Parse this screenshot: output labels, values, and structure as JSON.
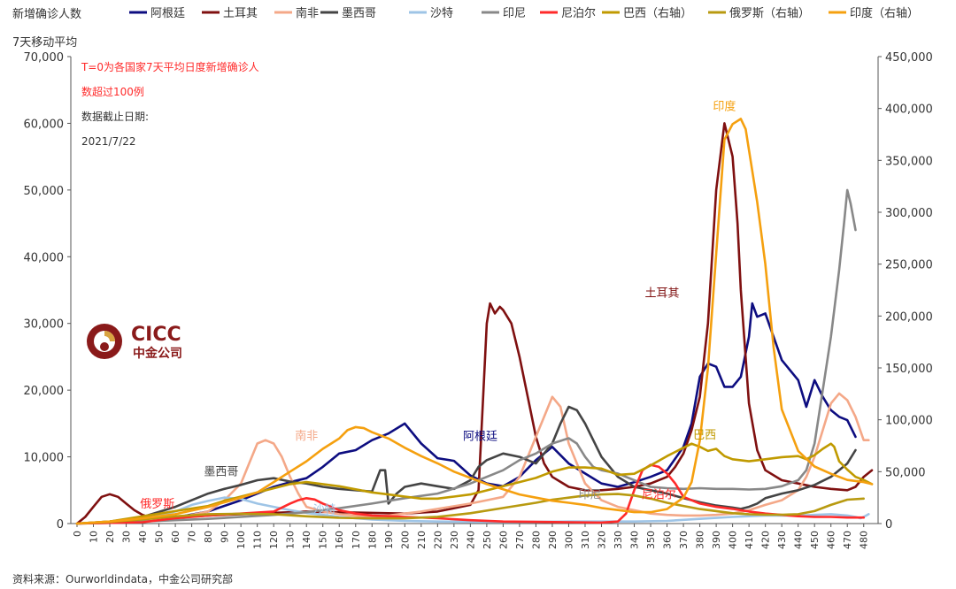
{
  "chart_data": {
    "type": "line",
    "ylabel_left": [
      "新增确诊人数",
      "7天移动平均"
    ],
    "y_left": {
      "min": 0,
      "max": 70000,
      "ticks": [
        "0",
        "10,000",
        "20,000",
        "30,000",
        "40,000",
        "50,000",
        "60,000",
        "70,000"
      ]
    },
    "y_right": {
      "min": 0,
      "max": 450000,
      "ticks": [
        "0",
        "50,000",
        "100,000",
        "150,000",
        "200,000",
        "250,000",
        "300,000",
        "350,000",
        "400,000",
        "450,000"
      ]
    },
    "x": {
      "min": 0,
      "max": 485,
      "ticks": [
        "0",
        "10",
        "20",
        "30",
        "40",
        "50",
        "60",
        "70",
        "80",
        "90",
        "100",
        "110",
        "120",
        "130",
        "140",
        "150",
        "160",
        "170",
        "180",
        "190",
        "200",
        "210",
        "220",
        "230",
        "240",
        "250",
        "260",
        "270",
        "280",
        "290",
        "300",
        "310",
        "320",
        "330",
        "340",
        "350",
        "360",
        "370",
        "380",
        "390",
        "400",
        "410",
        "420",
        "430",
        "440",
        "450",
        "460",
        "470",
        "480"
      ]
    },
    "grid": false,
    "legend_position": "top",
    "annotations": [
      {
        "text": "T=0为各国家7天平均日度新增确诊人",
        "color": "#ff2a2a"
      },
      {
        "text": "数超过100例",
        "color": "#ff2a2a"
      },
      {
        "text": "数据截止日期:",
        "color": "#333333"
      },
      {
        "text": "2021/7/22",
        "color": "#333333"
      }
    ],
    "series_labels": [
      {
        "text": "印度",
        "color": "#f5a00f",
        "x": 395,
        "y": 62000,
        "axis": "left"
      },
      {
        "text": "土耳其",
        "color": "#7f1010",
        "x": 357,
        "y": 34000,
        "axis": "left"
      },
      {
        "text": "巴西",
        "color": "#c09a00",
        "x": 383,
        "y": 12700,
        "axis": "left"
      },
      {
        "text": "阿根廷",
        "color": "#0d0d80",
        "x": 246,
        "y": 12500,
        "axis": "left"
      },
      {
        "text": "南非",
        "color": "#f4a888",
        "x": 140,
        "y": 12600,
        "axis": "left"
      },
      {
        "text": "墨西哥",
        "color": "#444444",
        "x": 88,
        "y": 7200,
        "axis": "left"
      },
      {
        "text": "俄罗斯",
        "color": "#ff2a2a",
        "x": 49,
        "y": 2400,
        "axis": "left"
      },
      {
        "text": "印尼",
        "color": "#888888",
        "x": 313,
        "y": 3800,
        "axis": "left"
      },
      {
        "text": "尼泊尔",
        "color": "#ff2a2a",
        "x": 355,
        "y": 3800,
        "axis": "left"
      },
      {
        "text": "沙特",
        "color": "#9ec4e6",
        "x": 151,
        "y": 1500,
        "axis": "left"
      }
    ],
    "series": [
      {
        "name": "阿根廷",
        "color": "#0d0d80",
        "axis": "left",
        "x": [
          0,
          20,
          40,
          60,
          80,
          100,
          120,
          130,
          140,
          150,
          160,
          170,
          180,
          190,
          200,
          210,
          220,
          230,
          240,
          250,
          260,
          270,
          280,
          290,
          300,
          310,
          320,
          330,
          340,
          350,
          360,
          370,
          375,
          380,
          385,
          390,
          395,
          400,
          405,
          410,
          412,
          415,
          420,
          425,
          430,
          440,
          445,
          450,
          455,
          460,
          465,
          470,
          475
        ],
        "y": [
          0,
          200,
          500,
          900,
          1800,
          3500,
          5500,
          6200,
          6800,
          8500,
          10500,
          11000,
          12500,
          13500,
          15000,
          12000,
          9800,
          9400,
          7200,
          6000,
          5600,
          7000,
          9500,
          11500,
          9000,
          7500,
          6000,
          5500,
          6200,
          7000,
          8000,
          11500,
          15000,
          22000,
          24000,
          23500,
          20500,
          20500,
          22000,
          28000,
          33000,
          31000,
          31500,
          28000,
          24500,
          21500,
          17500,
          21500,
          19000,
          17000,
          16000,
          15500,
          13000
        ]
      },
      {
        "name": "土耳其",
        "color": "#7f1010",
        "axis": "left",
        "x": [
          0,
          5,
          10,
          15,
          20,
          25,
          30,
          35,
          40,
          45,
          50,
          60,
          80,
          100,
          120,
          140,
          160,
          180,
          200,
          220,
          240,
          245,
          248,
          250,
          252,
          255,
          258,
          260,
          265,
          270,
          275,
          280,
          285,
          290,
          300,
          310,
          320,
          330,
          340,
          350,
          360,
          365,
          370,
          375,
          380,
          385,
          390,
          395,
          400,
          403,
          405,
          410,
          415,
          420,
          430,
          440,
          450,
          460,
          470,
          475,
          480,
          485
        ],
        "y": [
          0,
          1000,
          2500,
          4000,
          4400,
          4000,
          3000,
          2000,
          1300,
          900,
          800,
          900,
          1200,
          1400,
          1600,
          1800,
          1700,
          1600,
          1500,
          1800,
          2800,
          5000,
          20000,
          30000,
          33000,
          31500,
          32500,
          32000,
          30000,
          25000,
          19000,
          13000,
          9000,
          7000,
          5500,
          5000,
          5000,
          5200,
          5500,
          6000,
          7000,
          8500,
          10500,
          14000,
          19000,
          30000,
          50000,
          60000,
          55000,
          45000,
          35000,
          18000,
          11000,
          8000,
          6500,
          6000,
          5500,
          5200,
          5000,
          5500,
          7000,
          8000
        ]
      },
      {
        "name": "南非",
        "color": "#f4a888",
        "axis": "left",
        "x": [
          0,
          20,
          40,
          60,
          80,
          90,
          100,
          105,
          110,
          115,
          120,
          125,
          130,
          135,
          140,
          150,
          160,
          170,
          180,
          190,
          200,
          210,
          220,
          230,
          240,
          250,
          260,
          265,
          270,
          275,
          280,
          285,
          290,
          295,
          300,
          310,
          320,
          330,
          340,
          350,
          360,
          370,
          380,
          390,
          400,
          410,
          420,
          430,
          440,
          445,
          450,
          455,
          460,
          465,
          470,
          475,
          480,
          483
        ],
        "y": [
          0,
          100,
          300,
          800,
          1800,
          3500,
          6000,
          9000,
          12000,
          12500,
          12000,
          10000,
          7000,
          4500,
          2500,
          1800,
          1400,
          1200,
          1000,
          1200,
          1500,
          1800,
          2200,
          2600,
          3000,
          3500,
          4000,
          5500,
          7000,
          10000,
          13000,
          16000,
          19000,
          17500,
          12000,
          6000,
          3500,
          2500,
          2000,
          1500,
          1300,
          1200,
          1200,
          1300,
          1500,
          2000,
          2800,
          3500,
          5000,
          7000,
          10000,
          14000,
          18000,
          19500,
          18500,
          16000,
          12500,
          12500
        ]
      },
      {
        "name": "墨西哥",
        "color": "#444444",
        "axis": "left",
        "x": [
          0,
          20,
          40,
          60,
          80,
          90,
          100,
          110,
          120,
          130,
          140,
          150,
          160,
          170,
          180,
          185,
          188,
          190,
          195,
          200,
          210,
          220,
          230,
          240,
          245,
          250,
          260,
          270,
          280,
          290,
          295,
          300,
          305,
          310,
          320,
          330,
          340,
          350,
          360,
          370,
          380,
          390,
          400,
          405,
          410,
          415,
          420,
          430,
          440,
          450,
          460,
          470,
          475
        ],
        "y": [
          0,
          300,
          1000,
          2500,
          4500,
          5200,
          5800,
          6500,
          6800,
          6300,
          6000,
          5500,
          5200,
          5000,
          4800,
          8000,
          8000,
          3000,
          4500,
          5500,
          6000,
          5600,
          5200,
          6500,
          8500,
          9500,
          10500,
          10000,
          9000,
          12000,
          15000,
          17500,
          17000,
          15000,
          10000,
          7000,
          5500,
          5000,
          4500,
          3800,
          3200,
          2700,
          2400,
          2200,
          2500,
          3000,
          3800,
          4500,
          5000,
          5800,
          7000,
          9000,
          11000
        ]
      },
      {
        "name": "沙特",
        "color": "#9ec4e6",
        "axis": "left",
        "x": [
          0,
          20,
          40,
          60,
          70,
          80,
          90,
          100,
          110,
          120,
          130,
          140,
          150,
          160,
          180,
          200,
          220,
          240,
          260,
          280,
          300,
          320,
          340,
          360,
          380,
          400,
          420,
          440,
          460,
          465,
          470,
          475,
          478,
          480,
          483
        ],
        "y": [
          0,
          200,
          700,
          1800,
          2800,
          3400,
          3900,
          3700,
          3000,
          2500,
          2000,
          1600,
          1300,
          1000,
          600,
          400,
          300,
          250,
          250,
          250,
          300,
          300,
          300,
          400,
          700,
          1000,
          1200,
          1200,
          1400,
          1300,
          1200,
          1000,
          800,
          1000,
          1400
        ]
      },
      {
        "name": "印尼",
        "color": "#888888",
        "axis": "left",
        "x": [
          0,
          20,
          40,
          60,
          80,
          100,
          120,
          140,
          160,
          180,
          200,
          220,
          240,
          260,
          270,
          280,
          290,
          300,
          305,
          310,
          315,
          320,
          330,
          340,
          350,
          360,
          370,
          380,
          390,
          400,
          410,
          420,
          430,
          440,
          445,
          450,
          455,
          460,
          465,
          468,
          470,
          472,
          475
        ],
        "y": [
          0,
          100,
          300,
          500,
          700,
          1000,
          1300,
          1700,
          2300,
          3000,
          3800,
          4500,
          6000,
          8000,
          9500,
          10500,
          12000,
          12800,
          12000,
          10000,
          8500,
          8000,
          7500,
          6500,
          5500,
          5300,
          5200,
          5300,
          5200,
          5200,
          5100,
          5200,
          5600,
          6500,
          8000,
          12000,
          20000,
          28000,
          38000,
          45000,
          50000,
          48000,
          44000
        ]
      },
      {
        "name": "尼泊尔",
        "color": "#ff2a2a",
        "axis": "left",
        "x": [
          0,
          20,
          40,
          50,
          60,
          80,
          100,
          120,
          130,
          135,
          140,
          145,
          150,
          155,
          160,
          170,
          180,
          200,
          220,
          240,
          260,
          280,
          300,
          320,
          330,
          335,
          340,
          345,
          350,
          355,
          360,
          365,
          370,
          380,
          390,
          400,
          410,
          420,
          430,
          440,
          450,
          460,
          470,
          480
        ],
        "y": [
          0,
          100,
          200,
          500,
          800,
          1200,
          1500,
          1800,
          3000,
          3500,
          3800,
          3600,
          3000,
          2500,
          2000,
          1500,
          1200,
          1000,
          800,
          500,
          300,
          250,
          200,
          150,
          300,
          1500,
          5000,
          8000,
          8800,
          8500,
          7500,
          6000,
          4000,
          3000,
          2500,
          2200,
          1800,
          1500,
          1300,
          1100,
          1000,
          1000,
          900,
          900
        ]
      },
      {
        "name": "巴西（右轴）",
        "color": "#c09a00",
        "axis": "right",
        "x": [
          0,
          20,
          40,
          60,
          80,
          90,
          100,
          110,
          120,
          130,
          140,
          150,
          160,
          170,
          180,
          190,
          200,
          210,
          220,
          230,
          240,
          250,
          260,
          270,
          280,
          290,
          300,
          310,
          320,
          330,
          340,
          350,
          360,
          370,
          375,
          380,
          385,
          390,
          395,
          400,
          410,
          420,
          430,
          440,
          445,
          450,
          455,
          460,
          462,
          465,
          470,
          475,
          480,
          485
        ],
        "y": [
          0,
          2000,
          7000,
          12000,
          17000,
          22000,
          26000,
          30000,
          34000,
          38000,
          40000,
          38000,
          36000,
          33000,
          30000,
          28000,
          26000,
          24000,
          24000,
          26000,
          28000,
          32000,
          36000,
          40000,
          44000,
          50000,
          54000,
          54000,
          53000,
          47000,
          48000,
          56000,
          65000,
          73000,
          77000,
          74000,
          70000,
          72000,
          65000,
          62000,
          60000,
          62000,
          64000,
          65000,
          62000,
          66000,
          72000,
          77000,
          74000,
          60000,
          52000,
          45000,
          42000,
          38000
        ]
      },
      {
        "name": "俄罗斯（右轴）",
        "color": "#b89a10",
        "axis": "right",
        "x": [
          0,
          20,
          40,
          60,
          80,
          100,
          120,
          140,
          160,
          180,
          200,
          220,
          240,
          260,
          280,
          290,
          300,
          310,
          320,
          330,
          340,
          350,
          360,
          370,
          380,
          390,
          400,
          410,
          420,
          430,
          440,
          450,
          460,
          470,
          480
        ],
        "y": [
          0,
          1500,
          4000,
          7000,
          9000,
          9500,
          9000,
          7000,
          5500,
          5000,
          5000,
          6500,
          10000,
          15000,
          20000,
          23000,
          25000,
          27000,
          28000,
          28500,
          27000,
          24000,
          20000,
          17000,
          14000,
          12000,
          10000,
          9000,
          8500,
          8500,
          9000,
          12000,
          18000,
          23000,
          24000
        ]
      },
      {
        "name": "印度（右轴）",
        "color": "#f5a00f",
        "axis": "right",
        "x": [
          0,
          20,
          40,
          60,
          80,
          100,
          110,
          120,
          130,
          140,
          150,
          160,
          165,
          170,
          175,
          180,
          190,
          200,
          210,
          220,
          230,
          240,
          250,
          260,
          270,
          280,
          290,
          300,
          310,
          320,
          330,
          340,
          350,
          360,
          370,
          375,
          380,
          385,
          390,
          395,
          400,
          405,
          408,
          410,
          415,
          420,
          425,
          430,
          440,
          450,
          460,
          470,
          480,
          485
        ],
        "y": [
          0,
          2000,
          5000,
          9000,
          16000,
          25000,
          30000,
          40000,
          50000,
          60000,
          72000,
          82000,
          90000,
          93000,
          92000,
          88000,
          82000,
          73000,
          65000,
          58000,
          50000,
          44000,
          38000,
          33000,
          28000,
          25000,
          22000,
          20000,
          18000,
          15000,
          13000,
          11000,
          11000,
          14000,
          25000,
          40000,
          80000,
          150000,
          260000,
          370000,
          385000,
          390000,
          380000,
          360000,
          310000,
          250000,
          170000,
          110000,
          70000,
          55000,
          48000,
          42000,
          40000,
          38000
        ]
      }
    ],
    "watermark": {
      "en": "CICC",
      "zh": "中金公司"
    },
    "source": "资料来源：Ourworldindata，中金公司研究部"
  }
}
